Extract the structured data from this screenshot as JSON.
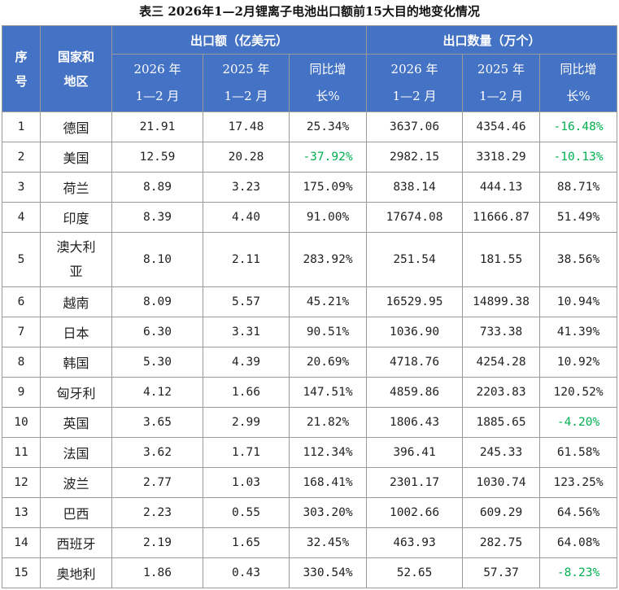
{
  "title": "表三 2026年1—2月锂离子电池出口额前15大目的地变化情况",
  "header": {
    "seq": [
      "序",
      "号"
    ],
    "country": [
      "国家和",
      "地区"
    ],
    "group_value": "出口额（亿美元）",
    "group_qty": "出口数量（万个）",
    "sub": [
      [
        "2026 年",
        "1—2 月"
      ],
      [
        "2025 年",
        "1—2 月"
      ],
      [
        "同比增",
        "长%"
      ],
      [
        "2026 年",
        "1—2 月"
      ],
      [
        "2025 年",
        "1—2 月"
      ],
      [
        "同比增",
        "长%"
      ]
    ]
  },
  "rows": [
    {
      "seq": "1",
      "name": [
        "德国"
      ],
      "v26": "21.91",
      "v25": "17.48",
      "vy": "25.34%",
      "q26": "3637.06",
      "q25": "4354.46",
      "qy": "-16.48%"
    },
    {
      "seq": "2",
      "name": [
        "美国"
      ],
      "v26": "12.59",
      "v25": "20.28",
      "vy": "-37.92%",
      "q26": "2982.15",
      "q25": "3318.29",
      "qy": "-10.13%"
    },
    {
      "seq": "3",
      "name": [
        "荷兰"
      ],
      "v26": "8.89",
      "v25": "3.23",
      "vy": "175.09%",
      "q26": "838.14",
      "q25": "444.13",
      "qy": "88.71%"
    },
    {
      "seq": "4",
      "name": [
        "印度"
      ],
      "v26": "8.39",
      "v25": "4.40",
      "vy": "91.00%",
      "q26": "17674.08",
      "q25": "11666.87",
      "qy": "51.49%"
    },
    {
      "seq": "5",
      "name": [
        "澳大利",
        "亚"
      ],
      "v26": "8.10",
      "v25": "2.11",
      "vy": "283.92%",
      "q26": "251.54",
      "q25": "181.55",
      "qy": "38.56%"
    },
    {
      "seq": "6",
      "name": [
        "越南"
      ],
      "v26": "8.09",
      "v25": "5.57",
      "vy": "45.21%",
      "q26": "16529.95",
      "q25": "14899.38",
      "qy": "10.94%"
    },
    {
      "seq": "7",
      "name": [
        "日本"
      ],
      "v26": "6.30",
      "v25": "3.31",
      "vy": "90.51%",
      "q26": "1036.90",
      "q25": "733.38",
      "qy": "41.39%"
    },
    {
      "seq": "8",
      "name": [
        "韩国"
      ],
      "v26": "5.30",
      "v25": "4.39",
      "vy": "20.69%",
      "q26": "4718.76",
      "q25": "4254.28",
      "qy": "10.92%"
    },
    {
      "seq": "9",
      "name": [
        "匈牙利"
      ],
      "v26": "4.12",
      "v25": "1.66",
      "vy": "147.51%",
      "q26": "4859.86",
      "q25": "2203.83",
      "qy": "120.52%"
    },
    {
      "seq": "10",
      "name": [
        "英国"
      ],
      "v26": "3.65",
      "v25": "2.99",
      "vy": "21.82%",
      "q26": "1806.43",
      "q25": "1885.65",
      "qy": "-4.20%"
    },
    {
      "seq": "11",
      "name": [
        "法国"
      ],
      "v26": "3.62",
      "v25": "1.71",
      "vy": "112.34%",
      "q26": "396.41",
      "q25": "245.33",
      "qy": "61.58%"
    },
    {
      "seq": "12",
      "name": [
        "波兰"
      ],
      "v26": "2.77",
      "v25": "1.03",
      "vy": "168.41%",
      "q26": "2301.17",
      "q25": "1030.74",
      "qy": "123.25%"
    },
    {
      "seq": "13",
      "name": [
        "巴西"
      ],
      "v26": "2.23",
      "v25": "0.55",
      "vy": "303.20%",
      "q26": "1002.66",
      "q25": "609.29",
      "qy": "64.56%"
    },
    {
      "seq": "14",
      "name": [
        "西班牙"
      ],
      "v26": "2.19",
      "v25": "1.65",
      "vy": "32.45%",
      "q26": "463.93",
      "q25": "282.75",
      "qy": "64.08%"
    },
    {
      "seq": "15",
      "name": [
        "奥地利"
      ],
      "v26": "1.86",
      "v25": "0.43",
      "vy": "330.54%",
      "q26": "52.65",
      "q25": "57.37",
      "qy": "-8.23%"
    }
  ],
  "colors": {
    "header_bg": "#4472c4",
    "negative": "#00b050"
  }
}
